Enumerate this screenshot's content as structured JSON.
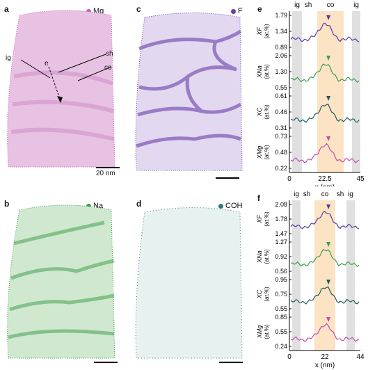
{
  "panels": {
    "a": {
      "label": "a",
      "legend": "Mg",
      "color": "#c85ab8",
      "scale": "20 nm"
    },
    "b": {
      "label": "b",
      "legend": "Na",
      "color": "#3a9a45"
    },
    "c": {
      "label": "c",
      "legend": "F",
      "color": "#6a3da8"
    },
    "d": {
      "label": "d",
      "legend": "COH",
      "color": "#2a7a78"
    }
  },
  "annotations": {
    "ig": "ig",
    "e": "e",
    "sh": "sh",
    "co": "co"
  },
  "profile_e": {
    "label": "e",
    "regions": [
      "ig",
      "sh",
      "co",
      "ig"
    ],
    "xaxis": {
      "ticks": [
        "0",
        "22.5",
        "45"
      ],
      "label": "x (nm)"
    },
    "rows": [
      {
        "ylab": "X",
        "sub": "F",
        "unit": "(at.%)",
        "ticks": [
          "1.79",
          "1.34",
          "0.89"
        ],
        "color": "#5a3aa0"
      },
      {
        "ylab": "X",
        "sub": "Na",
        "unit": "(at.%)",
        "ticks": [
          "2.06",
          "1.30",
          "0.55"
        ],
        "color": "#3aa04a"
      },
      {
        "ylab": "X",
        "sub": "C",
        "unit": "(at.%)",
        "ticks": [
          "0.61",
          "0.46",
          "0.31"
        ],
        "color": "#1e5a5c"
      },
      {
        "ylab": "X",
        "sub": "Mg",
        "unit": "(at.%)",
        "ticks": [
          "0.73",
          "0.48",
          "0.22"
        ],
        "color": "#c24ab0"
      }
    ]
  },
  "profile_f": {
    "label": "f",
    "regions": [
      "ig",
      "sh",
      "co",
      "sh",
      "ig"
    ],
    "xaxis": {
      "ticks": [
        "0",
        "22",
        "44"
      ],
      "label": "x (nm)"
    },
    "rows": [
      {
        "ylab": "X",
        "sub": "F",
        "unit": "(at.%)",
        "ticks": [
          "2.08",
          "1.78",
          "1.47"
        ],
        "color": "#5a3aa0"
      },
      {
        "ylab": "X",
        "sub": "Na",
        "unit": "(at.%)",
        "ticks": [
          "1.27",
          "0.92",
          "0.56"
        ],
        "color": "#3aa04a"
      },
      {
        "ylab": "X",
        "sub": "C",
        "unit": "(at.%)",
        "ticks": [
          "0.95",
          "0.75",
          "0.55"
        ],
        "color": "#1e5a5c"
      },
      {
        "ylab": "X",
        "sub": "Mg",
        "unit": "(at.%)",
        "ticks": [
          "0.85",
          "0.55",
          "0.24"
        ],
        "color": "#c24ab0"
      }
    ]
  }
}
